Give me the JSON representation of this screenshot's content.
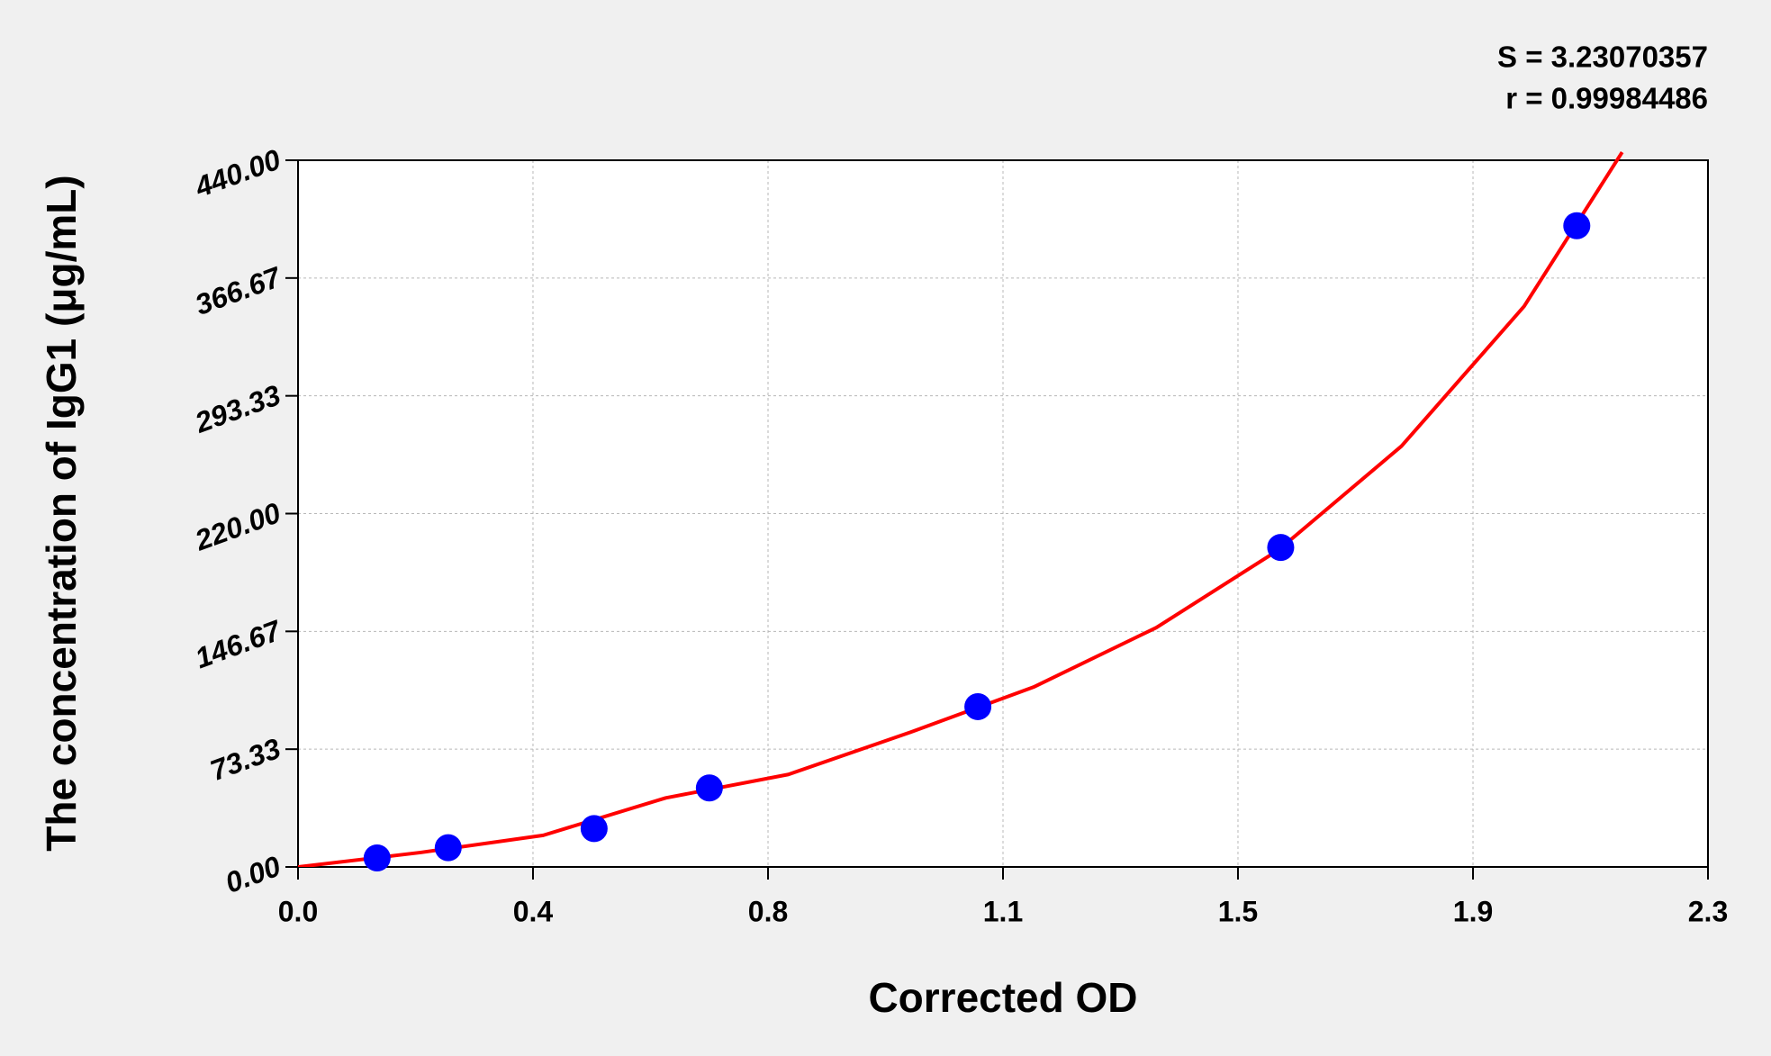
{
  "chart_data": {
    "type": "scatter",
    "x_label": "Corrected OD",
    "y_label": "The concentration of IgG1 (μg/mL)",
    "annotations": [
      "S = 3.23070357",
      "r = 0.99984486"
    ],
    "xlim": [
      0,
      2.3
    ],
    "ylim": [
      0,
      440
    ],
    "xticks": [
      {
        "value": 0,
        "label": "0.0"
      },
      {
        "value": 0.3833,
        "label": "0.4"
      },
      {
        "value": 0.7667,
        "label": "0.8"
      },
      {
        "value": 1.15,
        "label": "1.1"
      },
      {
        "value": 1.5333,
        "label": "1.5"
      },
      {
        "value": 1.9167,
        "label": "1.9"
      },
      {
        "value": 2.3,
        "label": "2.3"
      }
    ],
    "yticks": [
      {
        "value": 0,
        "label": "0.00"
      },
      {
        "value": 73.33,
        "label": "73.33"
      },
      {
        "value": 146.67,
        "label": "146.67"
      },
      {
        "value": 220,
        "label": "220.00"
      },
      {
        "value": 293.33,
        "label": "293.33"
      },
      {
        "value": 366.67,
        "label": "366.67"
      },
      {
        "value": 440,
        "label": "440.00"
      }
    ],
    "grid": true,
    "points": {
      "color": "#0000ff",
      "x": [
        0.129,
        0.245,
        0.483,
        0.671,
        1.109,
        1.603,
        2.086
      ],
      "y": [
        5.6,
        12,
        23.9,
        49.2,
        99.8,
        198.9,
        399.2
      ]
    },
    "fit": {
      "color": "#ff0000",
      "x": [
        0,
        0.2,
        0.4,
        0.6,
        0.8,
        1.0,
        1.2,
        1.4,
        1.6,
        1.8,
        2.0,
        2.16
      ],
      "y": [
        0,
        9,
        19.7,
        43,
        57.6,
        84,
        112,
        149,
        197.5,
        262,
        349,
        445
      ]
    }
  }
}
